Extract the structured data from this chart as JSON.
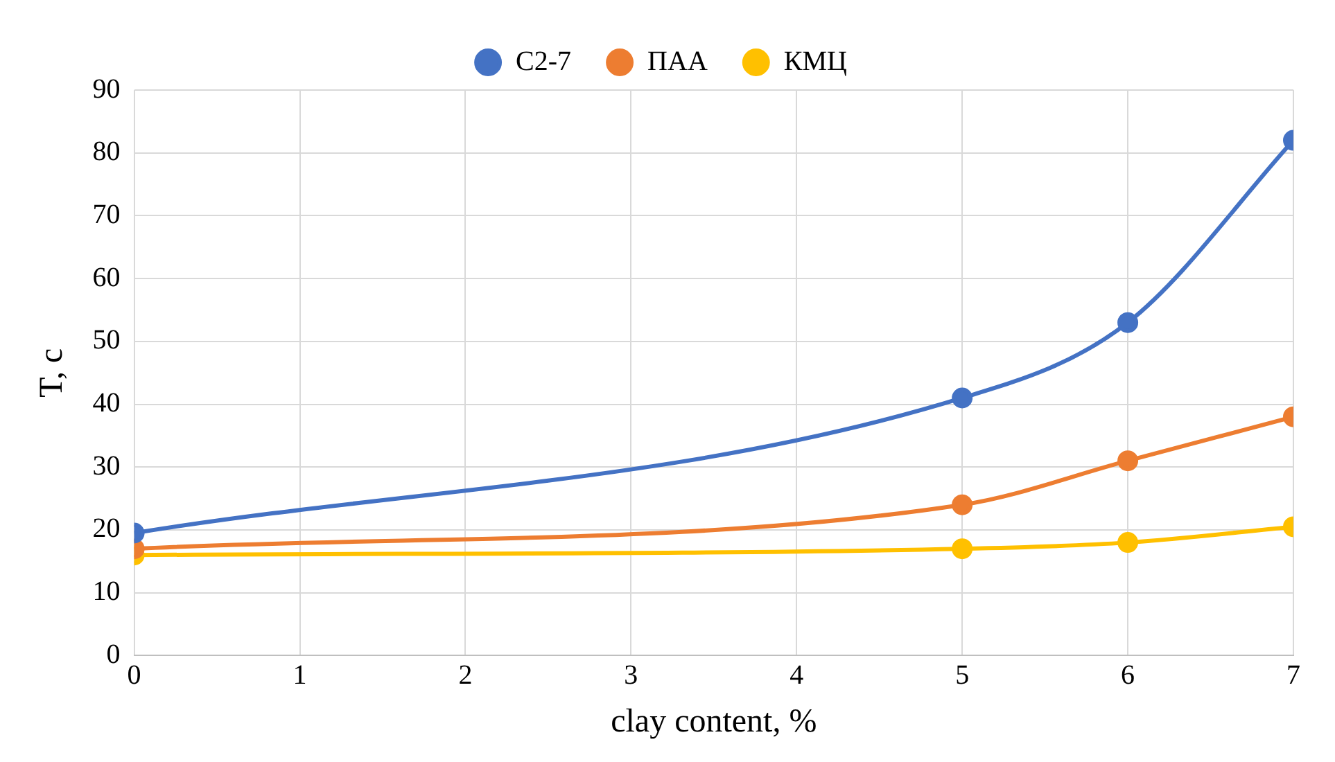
{
  "chart_data": {
    "type": "line",
    "xlabel": "clay content, %",
    "ylabel": "T, c",
    "x": [
      0,
      5,
      6,
      7
    ],
    "series": [
      {
        "name": "С2-7",
        "color": "#4472c4",
        "values": [
          19.5,
          41,
          53,
          82
        ]
      },
      {
        "name": "ПАА",
        "color": "#ed7d31",
        "values": [
          17,
          24,
          31,
          38
        ]
      },
      {
        "name": "КМЦ",
        "color": "#ffc000",
        "values": [
          16,
          17,
          18,
          20.5
        ]
      }
    ],
    "xlim": [
      0,
      7
    ],
    "xticks": [
      0,
      1,
      2,
      3,
      4,
      5,
      6,
      7
    ],
    "ylim": [
      0,
      90
    ],
    "yticks": [
      0,
      10,
      20,
      30,
      40,
      50,
      60,
      70,
      80,
      90
    ],
    "grid": true,
    "legend": "top",
    "marker": "circle",
    "line_style": "solid"
  }
}
